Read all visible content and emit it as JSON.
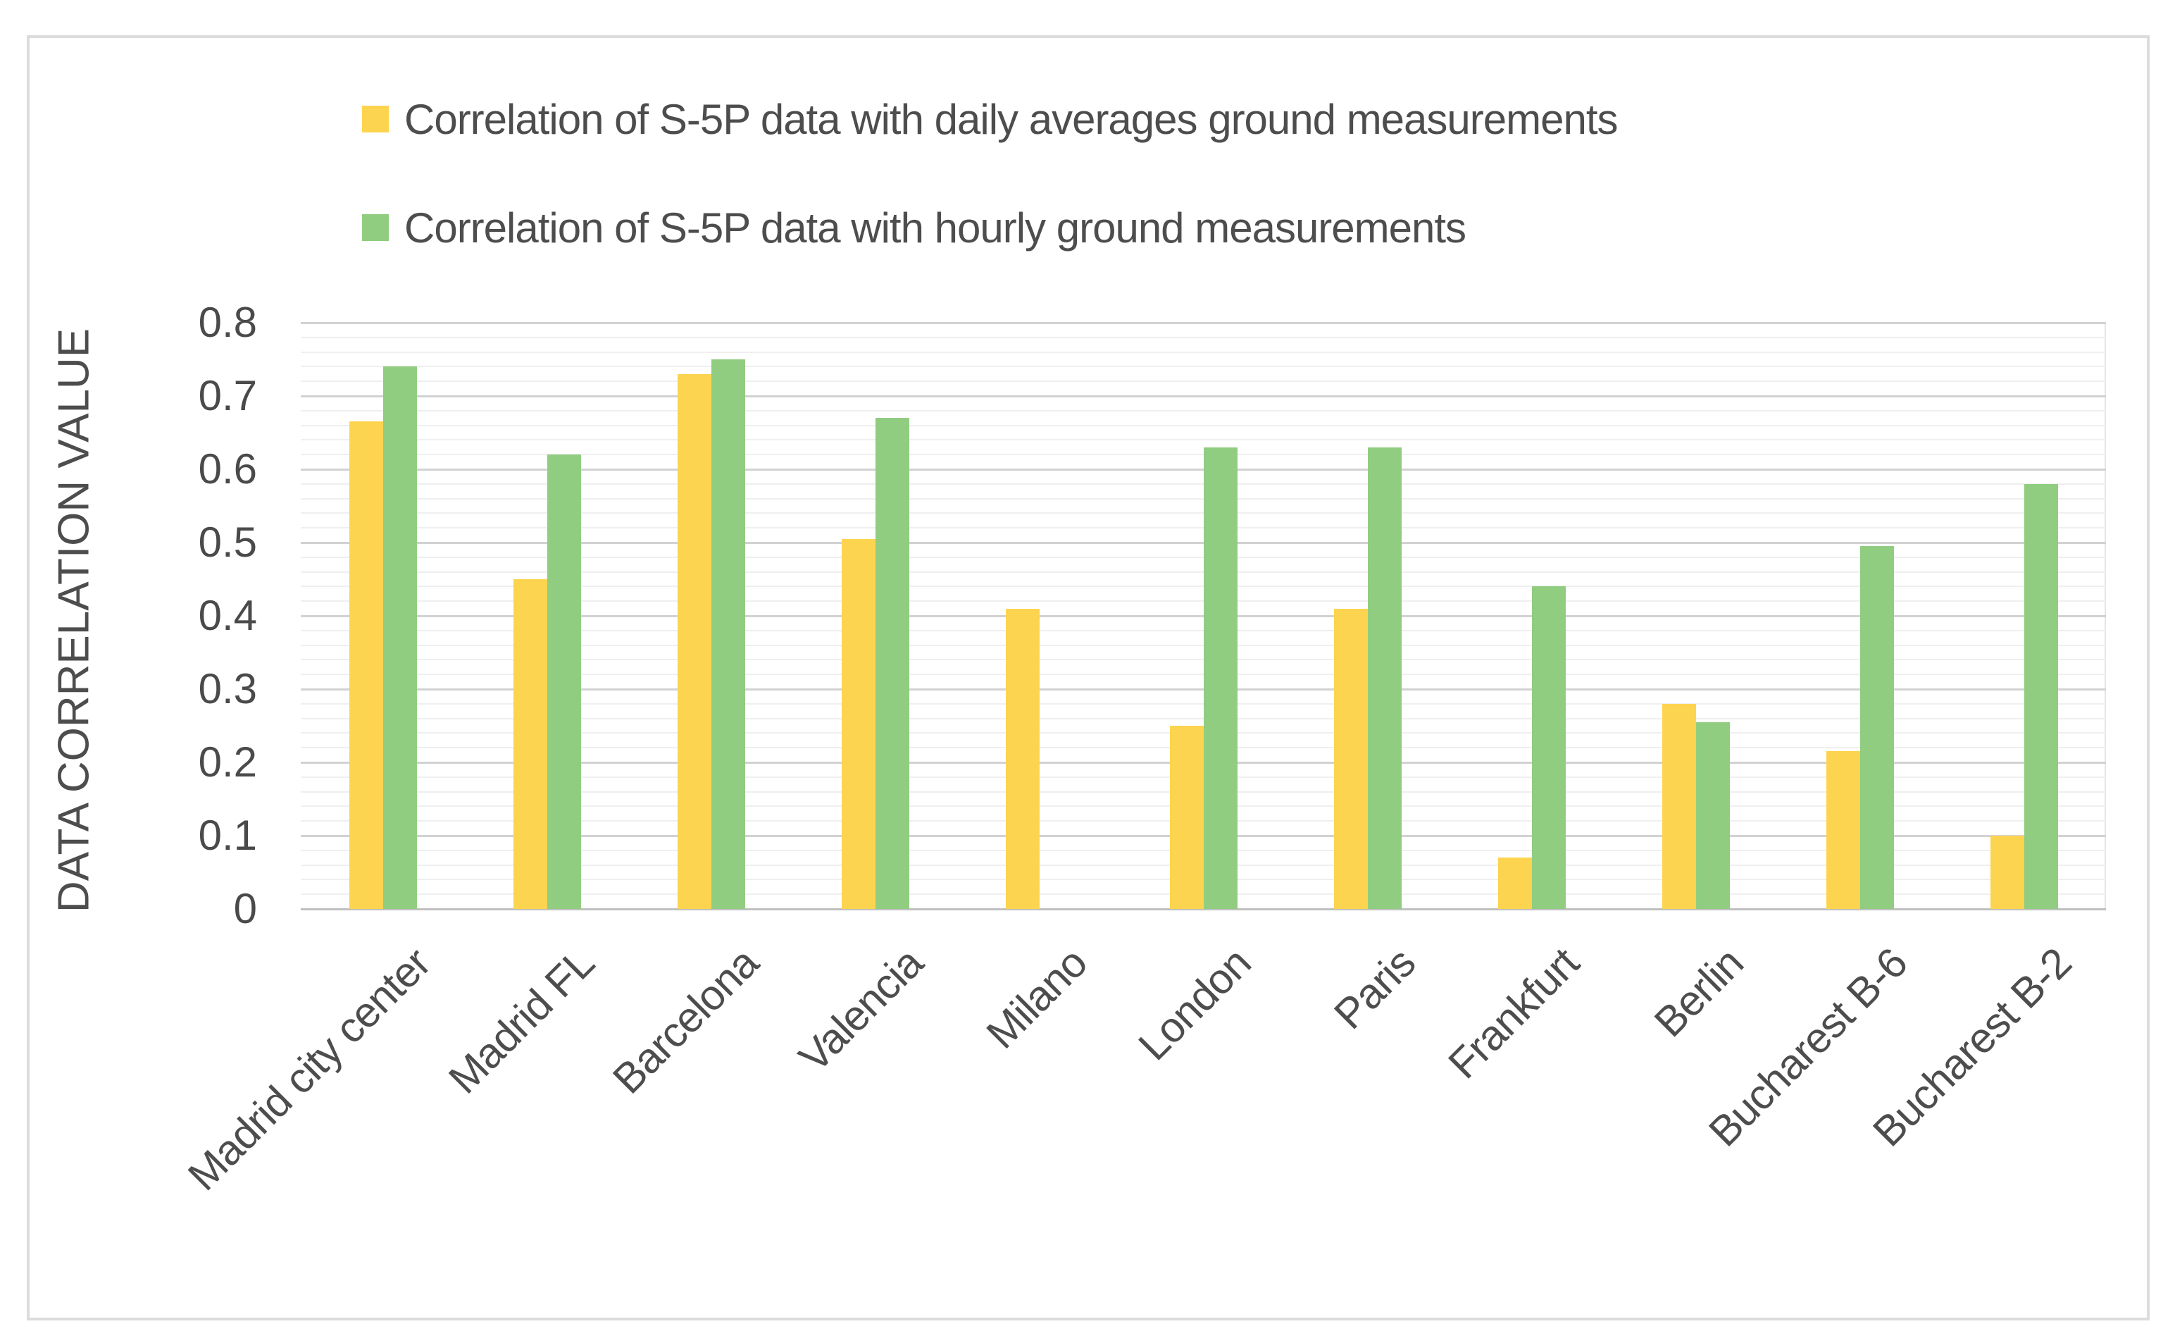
{
  "chart_data": {
    "type": "bar",
    "title": "",
    "xlabel": "",
    "ylabel": "DATA CORRELATION VALUE",
    "ylim": [
      0,
      0.8
    ],
    "ytick_labels": [
      "0.8",
      "0.7",
      "0.6",
      "0.5",
      "0.4",
      "0.3",
      "0.2",
      "0.1",
      "0"
    ],
    "ytick_values": [
      0.8,
      0.7,
      0.6,
      0.5,
      0.4,
      0.3,
      0.2,
      0.1,
      0
    ],
    "minor_gridline_step": 0.02,
    "major_gridline_step": 0.1,
    "grid": true,
    "legend_position": "top-left",
    "categories": [
      "Madrid city center",
      "Madrid FL",
      "Barcelona",
      "Valencia",
      "Milano",
      "London",
      "Paris",
      "Frankfurt",
      "Berlin",
      "Bucharest B-6",
      "Bucharest B-2"
    ],
    "series": [
      {
        "name": "Correlation of S-5P data with daily averages ground measurements",
        "color": "#FDD44F",
        "values": [
          0.665,
          0.45,
          0.73,
          0.505,
          0.41,
          0.25,
          0.41,
          0.07,
          0.28,
          0.215,
          0.1
        ]
      },
      {
        "name": "Correlation of S-5P data with hourly ground measurements",
        "color": "#90CD80",
        "values": [
          0.74,
          0.62,
          0.75,
          0.67,
          null,
          0.63,
          0.63,
          0.44,
          0.255,
          0.495,
          0.58
        ]
      }
    ]
  },
  "legend": {
    "items": [
      {
        "label": "Correlation of S-5P data with daily averages ground measurements",
        "color": "#FDD44F"
      },
      {
        "label": "Correlation of S-5P data with hourly ground measurements",
        "color": "#90CD80"
      }
    ]
  },
  "colors": {
    "frame_border": "#DCDCDC",
    "major_gridline": "#D2D2D2",
    "minor_gridline": "#EFEFEF",
    "axis_line": "#C0C0C0",
    "text": "#4D4D4D",
    "background": "#FFFFFF"
  }
}
